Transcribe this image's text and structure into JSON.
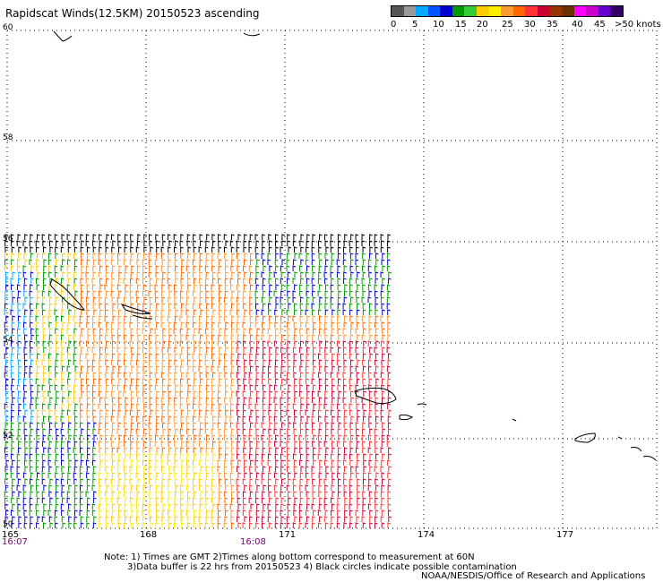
{
  "title": "Rapidscat Winds(12.5KM) 20150523 ascending",
  "colorbar": {
    "colors": [
      "#555555",
      "#999999",
      "#00aaff",
      "#0055ff",
      "#0000cc",
      "#009900",
      "#33cc33",
      "#ffcc00",
      "#ffee00",
      "#ff9933",
      "#ff6600",
      "#ff3333",
      "#cc0033",
      "#993300",
      "#663300",
      "#ff00ff",
      "#cc00cc",
      "#6600cc",
      "#330066"
    ],
    "labels": [
      "0",
      "5",
      "10",
      "15",
      "20",
      "25",
      "30",
      "35",
      "40",
      "45",
      ">50 knots"
    ]
  },
  "lat_labels": [
    "60",
    "58",
    "56",
    "54",
    "52",
    "50"
  ],
  "lon_labels": [
    "165",
    "168",
    "171",
    "174",
    "177"
  ],
  "time_labels": [
    "16:07",
    "16:08"
  ],
  "notes": {
    "line1": "Note: 1) Times are GMT 2)Times along bottom correspond to measurement at 60N",
    "line2": "3)Data buffer is 22 hrs from 20150523 4) Black circles indicate possible contamination"
  },
  "credit": "NOAA/NESDIS/Office of Research and Applications",
  "swath_colors": [
    "#0000cc",
    "#00aaff",
    "#009900",
    "#ffcc00",
    "#ffee00",
    "#ff9933",
    "#ff6600",
    "#cc0033",
    "#ff3333",
    "#000000"
  ]
}
